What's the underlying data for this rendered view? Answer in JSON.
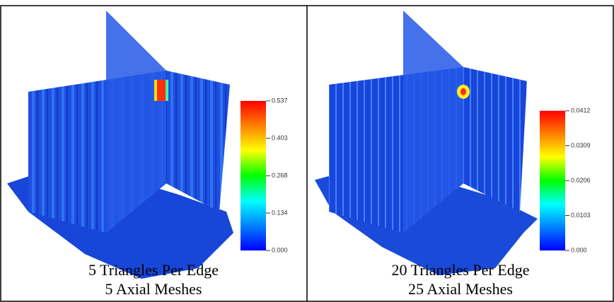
{
  "panels": [
    {
      "caption": [
        "5 Triangles Per Edge",
        "5 Axial Meshes"
      ],
      "colorbar": {
        "ticks": [
          "0.537",
          "0.403",
          "0.268",
          "0.134",
          "0.000"
        ]
      }
    },
    {
      "caption": [
        "20 Triangles Per Edge",
        "25 Axial Meshes"
      ],
      "colorbar": {
        "ticks": [
          "0.0412",
          "0.0309",
          "0.0206",
          "0.0103",
          "0.000"
        ]
      }
    }
  ]
}
